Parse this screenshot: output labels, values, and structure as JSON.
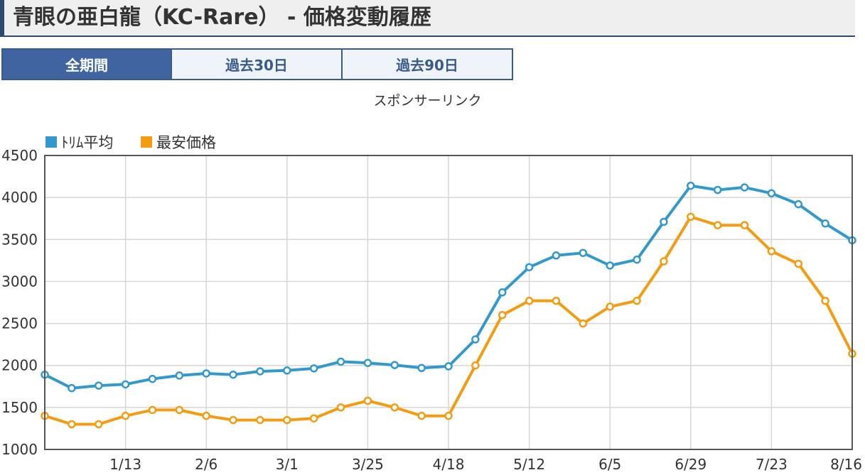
{
  "header": {
    "title": "青眼の亜白龍（KC-Rare） - 価格変動履歴"
  },
  "tabs": [
    {
      "label": "全期間",
      "active": true
    },
    {
      "label": "過去30日",
      "active": false
    },
    {
      "label": "過去90日",
      "active": false
    }
  ],
  "sponsor_text": "スポンサーリンク",
  "chart_data": {
    "type": "line",
    "ylim": [
      1000,
      4500
    ],
    "yticks": [
      1000,
      1500,
      2000,
      2500,
      3000,
      3500,
      4000,
      4500
    ],
    "xtick_labels": [
      "1/13",
      "2/6",
      "3/1",
      "3/25",
      "4/18",
      "5/12",
      "6/5",
      "6/29",
      "7/23",
      "8/16"
    ],
    "grid": true,
    "legend_position": "top-left",
    "series": [
      {
        "name": "ﾄﾘﾑ平均",
        "color": "#3399cc",
        "values": [
          1890,
          1730,
          1760,
          1775,
          1840,
          1880,
          1905,
          1890,
          1930,
          1940,
          1965,
          2045,
          2030,
          2005,
          1970,
          1990,
          2310,
          2870,
          3170,
          3310,
          3340,
          3190,
          3260,
          3710,
          4140,
          4090,
          4120,
          4050,
          3920,
          3690,
          3490
        ]
      },
      {
        "name": "最安価格",
        "color": "#f39c12",
        "values": [
          1400,
          1300,
          1300,
          1400,
          1470,
          1470,
          1400,
          1350,
          1350,
          1350,
          1370,
          1500,
          1580,
          1500,
          1400,
          1400,
          2000,
          2600,
          2770,
          2770,
          2500,
          2700,
          2770,
          3240,
          3770,
          3670,
          3670,
          3360,
          3210,
          2770,
          2140
        ]
      }
    ]
  }
}
